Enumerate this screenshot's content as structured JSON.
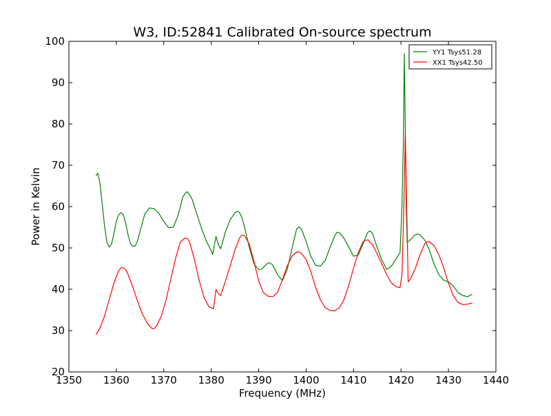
{
  "chart_data": {
    "type": "line",
    "title": "W3, ID:52841 Calibrated On-source spectrum",
    "xlabel": "Frequency (MHz)",
    "ylabel": "Power in Kelvin",
    "xlim": [
      1350,
      1440
    ],
    "ylim": [
      20,
      100
    ],
    "xticks": [
      1350,
      1360,
      1370,
      1380,
      1390,
      1400,
      1410,
      1420,
      1430,
      1440
    ],
    "yticks": [
      20,
      30,
      40,
      50,
      60,
      70,
      80,
      90,
      100
    ],
    "grid": false,
    "legend_position": "top-right",
    "series": [
      {
        "name": "YY1 Tsys51.28",
        "color": "#008000",
        "x": [
          1355.7,
          1356.1,
          1356.5,
          1357.0,
          1357.5,
          1358.0,
          1358.5,
          1359.0,
          1359.5,
          1360.0,
          1360.5,
          1361.0,
          1361.5,
          1362.0,
          1362.5,
          1363.0,
          1363.5,
          1364.0,
          1364.5,
          1365.0,
          1366.0,
          1367.0,
          1368.0,
          1369.0,
          1370.0,
          1371.0,
          1372.0,
          1373.0,
          1374.0,
          1374.5,
          1375.0,
          1375.5,
          1376.0,
          1377.0,
          1378.0,
          1379.0,
          1380.0,
          1380.3,
          1381.0,
          1381.5,
          1382.0,
          1383.0,
          1384.0,
          1385.0,
          1385.5,
          1386.0,
          1386.5,
          1387.0,
          1388.0,
          1389.0,
          1390.0,
          1390.5,
          1391.0,
          1392.0,
          1392.5,
          1393.0,
          1394.0,
          1395.0,
          1396.0,
          1397.0,
          1398.0,
          1398.5,
          1399.0,
          1400.0,
          1401.0,
          1402.0,
          1403.0,
          1404.0,
          1405.0,
          1406.0,
          1406.5,
          1407.0,
          1408.0,
          1409.0,
          1410.0,
          1411.0,
          1412.0,
          1413.0,
          1413.5,
          1414.0,
          1415.0,
          1416.0,
          1417.0,
          1418.0,
          1419.0,
          1419.8,
          1420.2,
          1420.5,
          1420.7,
          1420.9,
          1421.1,
          1421.3,
          1422.0,
          1423.0,
          1423.5,
          1424.0,
          1425.0,
          1426.0,
          1427.0,
          1428.0,
          1429.0,
          1430.0,
          1431.0,
          1432.0,
          1433.0,
          1434.0,
          1435.0
        ],
        "y": [
          67.4,
          68.1,
          66.0,
          61.0,
          55.5,
          51.4,
          50.2,
          51.0,
          53.5,
          56.5,
          58.0,
          58.6,
          58.0,
          55.8,
          53.0,
          51.0,
          50.4,
          50.5,
          51.8,
          54.0,
          58.2,
          59.7,
          59.5,
          58.3,
          56.4,
          54.9,
          55.0,
          57.8,
          62.3,
          63.2,
          63.6,
          62.8,
          61.7,
          58.1,
          54.6,
          51.6,
          49.3,
          48.4,
          52.8,
          50.8,
          49.8,
          53.9,
          56.8,
          58.5,
          58.9,
          58.5,
          57.2,
          55.2,
          50.2,
          46.2,
          44.8,
          44.8,
          45.3,
          46.4,
          46.3,
          45.8,
          43.5,
          42.1,
          44.7,
          49.8,
          54.6,
          55.1,
          54.6,
          51.6,
          48.0,
          45.8,
          45.6,
          46.9,
          50.0,
          52.9,
          53.8,
          53.7,
          52.3,
          50.2,
          48.0,
          48.3,
          51.0,
          53.8,
          54.1,
          53.5,
          50.0,
          47.0,
          44.8,
          45.6,
          47.4,
          48.8,
          60.0,
          76.0,
          97.0,
          80.0,
          60.0,
          51.3,
          52.0,
          53.2,
          53.4,
          53.2,
          51.9,
          49.4,
          46.0,
          43.5,
          42.2,
          41.8,
          40.8,
          39.2,
          38.5,
          38.2,
          38.8
        ]
      },
      {
        "name": "XX1 Tsys42.50",
        "color": "#ff0000",
        "x": [
          1355.7,
          1356.5,
          1357.5,
          1358.5,
          1359.5,
          1360.5,
          1361.0,
          1361.5,
          1362.0,
          1362.5,
          1363.5,
          1364.5,
          1365.5,
          1366.5,
          1367.5,
          1368.0,
          1368.5,
          1369.5,
          1370.5,
          1371.5,
          1372.5,
          1373.5,
          1374.5,
          1375.0,
          1375.5,
          1376.5,
          1377.5,
          1378.5,
          1379.5,
          1380.0,
          1380.5,
          1381.0,
          1381.5,
          1382.0,
          1383.0,
          1384.0,
          1385.0,
          1386.0,
          1386.5,
          1387.0,
          1388.0,
          1389.0,
          1390.0,
          1391.0,
          1392.0,
          1393.0,
          1394.0,
          1395.0,
          1396.0,
          1397.0,
          1398.0,
          1398.5,
          1399.0,
          1400.0,
          1401.0,
          1402.0,
          1403.0,
          1404.0,
          1405.0,
          1406.0,
          1407.0,
          1408.0,
          1409.0,
          1410.0,
          1411.0,
          1412.0,
          1413.0,
          1414.0,
          1415.0,
          1416.0,
          1417.0,
          1418.0,
          1419.0,
          1419.8,
          1420.2,
          1420.6,
          1420.9,
          1421.2,
          1421.5,
          1422.0,
          1423.0,
          1424.0,
          1425.0,
          1425.5,
          1426.0,
          1427.0,
          1428.0,
          1429.0,
          1430.0,
          1431.0,
          1432.0,
          1433.0,
          1434.0,
          1435.0
        ],
        "y": [
          29.0,
          30.5,
          33.5,
          37.5,
          41.5,
          44.5,
          45.2,
          45.2,
          44.7,
          43.5,
          40.5,
          37.0,
          34.0,
          31.8,
          30.5,
          30.5,
          31.2,
          33.5,
          37.5,
          42.5,
          47.5,
          51.5,
          52.4,
          52.3,
          51.2,
          47.0,
          42.0,
          38.0,
          35.8,
          35.5,
          35.3,
          40.0,
          38.9,
          38.5,
          42.0,
          45.7,
          49.5,
          52.5,
          53.1,
          53.0,
          51.0,
          46.8,
          42.0,
          39.2,
          38.3,
          38.2,
          39.3,
          42.3,
          45.6,
          48.0,
          49.0,
          49.0,
          48.7,
          47.2,
          44.3,
          40.5,
          37.5,
          35.6,
          34.9,
          34.8,
          35.5,
          37.6,
          41.0,
          45.1,
          48.9,
          51.5,
          52.0,
          50.8,
          48.5,
          46.0,
          43.5,
          41.5,
          40.6,
          40.4,
          43.5,
          60.0,
          77.5,
          60.0,
          41.8,
          42.5,
          45.0,
          48.3,
          51.0,
          51.5,
          51.5,
          50.5,
          48.3,
          45.2,
          41.5,
          38.5,
          36.8,
          36.3,
          36.4,
          36.7
        ]
      }
    ]
  }
}
